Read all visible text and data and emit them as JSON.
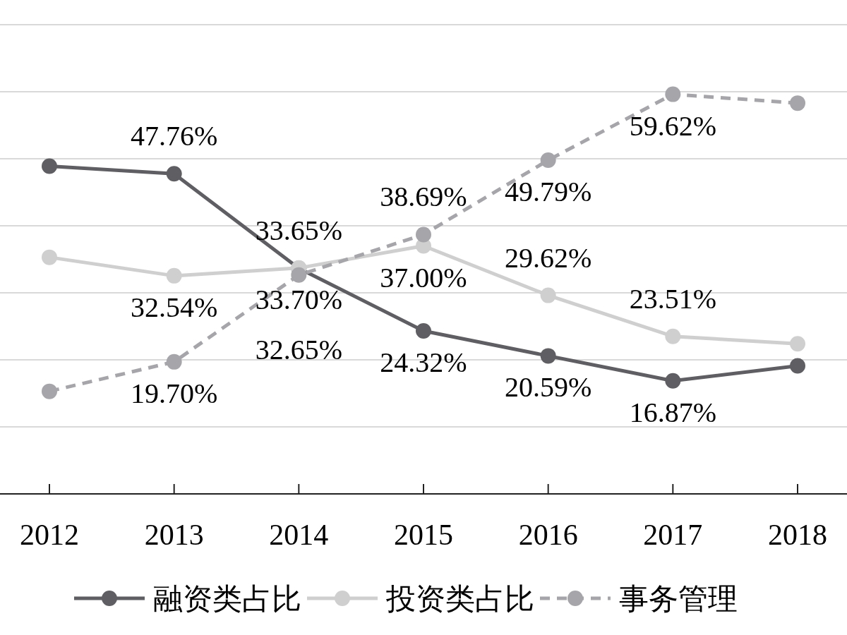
{
  "chart_data": {
    "type": "line",
    "categories": [
      "2012",
      "2013",
      "2014",
      "2015",
      "2016",
      "2017",
      "2018"
    ],
    "series": [
      {
        "name": "融资类占比",
        "color": "#5f5f63",
        "line_style": "solid",
        "values": [
          48.9,
          47.76,
          33.65,
          24.32,
          20.59,
          16.87,
          19.1
        ],
        "value_labels": [
          null,
          "47.76%",
          "33.65%",
          "24.32%",
          "20.59%",
          "16.87%",
          null
        ]
      },
      {
        "name": "投资类占比",
        "color": "#cfcfcf",
        "line_style": "solid",
        "values": [
          35.3,
          32.54,
          33.7,
          37.0,
          29.62,
          23.51,
          22.4
        ],
        "value_labels": [
          null,
          "32.54%",
          "33.70%",
          "37.00%",
          "29.62%",
          "23.51%",
          null
        ]
      },
      {
        "name": "事务管理",
        "color": "#a6a6aa",
        "line_style": "dashed",
        "values": [
          15.3,
          19.7,
          32.65,
          38.69,
          49.79,
          59.62,
          58.3
        ],
        "value_labels": [
          null,
          "19.70%",
          "32.65%",
          "38.69%",
          "49.79%",
          "59.62%",
          null
        ]
      }
    ],
    "ylim": [
      0,
      70
    ],
    "yticks": [
      {
        "value": 10,
        "label": null
      },
      {
        "value": 20,
        "label": null
      },
      {
        "value": 30,
        "label": null
      },
      {
        "value": 40,
        "label": null
      },
      {
        "value": 50,
        "label": null
      },
      {
        "value": 60,
        "label": null
      },
      {
        "value": 70,
        "label": null
      }
    ],
    "tick_labels": "x",
    "grid": "y",
    "marker": "circle",
    "legend": "bottom"
  }
}
